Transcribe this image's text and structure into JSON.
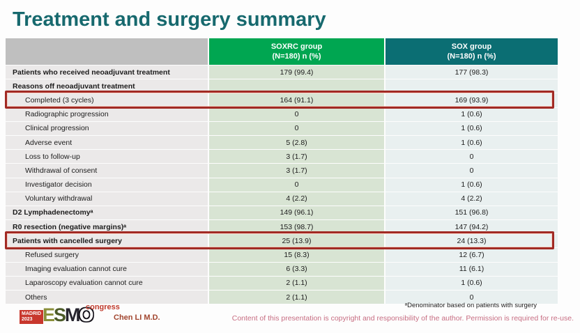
{
  "slide": {
    "title": "Treatment and surgery summary",
    "colors": {
      "title_teal": "#17696E",
      "header_green": "#00A651",
      "header_teal": "#0B6E73",
      "header_gray": "#BFBFBF",
      "highlight_red": "#A12A24",
      "label_cell_bg": "#EBE9E9",
      "soxrc_cell_bg": "#D8E4D3",
      "sox_cell_bg": "#E9F0F0"
    }
  },
  "table": {
    "header": {
      "blank": "",
      "soxrc": {
        "line1": "SOXRC group",
        "line2": "(N=180)  n (%)"
      },
      "sox": {
        "line1": "SOX group",
        "line2": "(N=180)  n (%)"
      }
    },
    "rows": [
      {
        "label": "Patients who received neoadjuvant treatment",
        "soxrc": "179 (99.4)",
        "sox": "177 (98.3)",
        "style": "bold",
        "highlight": false
      },
      {
        "label": "Reasons off neoadjuvant treatment",
        "soxrc": "",
        "sox": "",
        "style": "bold",
        "highlight": false
      },
      {
        "label": "Completed (3 cycles)",
        "soxrc": "164 (91.1)",
        "sox": "169 (93.9)",
        "style": "indent",
        "highlight": true
      },
      {
        "label": "Radiographic progression",
        "soxrc": "0",
        "sox": "1 (0.6)",
        "style": "indent",
        "highlight": false
      },
      {
        "label": "Clinical progression",
        "soxrc": "0",
        "sox": "1 (0.6)",
        "style": "indent",
        "highlight": false
      },
      {
        "label": "Adverse event",
        "soxrc": "5 (2.8)",
        "sox": "1 (0.6)",
        "style": "indent",
        "highlight": false
      },
      {
        "label": "Loss to follow-up",
        "soxrc": "3 (1.7)",
        "sox": "0",
        "style": "indent",
        "highlight": false
      },
      {
        "label": "Withdrawal of consent",
        "soxrc": "3 (1.7)",
        "sox": "0",
        "style": "indent",
        "highlight": false
      },
      {
        "label": "Investigator decision",
        "soxrc": "0",
        "sox": "1 (0.6)",
        "style": "indent",
        "highlight": false
      },
      {
        "label": "Voluntary withdrawal",
        "soxrc": "4 (2.2)",
        "sox": "4 (2.2)",
        "style": "indent",
        "highlight": false
      },
      {
        "label": "D2 Lymphadenectomyᵃ",
        "soxrc": "149 (96.1)",
        "sox": "151 (96.8)",
        "style": "bold",
        "highlight": false
      },
      {
        "label": "R0 resection (negative margins)ᵃ",
        "soxrc": "153 (98.7)",
        "sox": "147 (94.2)",
        "style": "bold",
        "highlight": false
      },
      {
        "label": "Patients with cancelled surgery",
        "soxrc": "25 (13.9)",
        "sox": "24 (13.3)",
        "style": "bold",
        "highlight": true
      },
      {
        "label": "Refused surgery",
        "soxrc": "15 (8.3)",
        "sox": "12 (6.7)",
        "style": "indent",
        "highlight": false
      },
      {
        "label": "Imaging evaluation cannot cure",
        "soxrc": "6 (3.3)",
        "sox": "11 (6.1)",
        "style": "indent",
        "highlight": false
      },
      {
        "label": "Laparoscopy evaluation cannot cure",
        "soxrc": "2 (1.1)",
        "sox": "1 (0.6)",
        "style": "indent",
        "highlight": false
      },
      {
        "label": "Others",
        "soxrc": "2 (1.1)",
        "sox": "0",
        "style": "indent",
        "highlight": false
      }
    ]
  },
  "footer": {
    "logo": {
      "madrid": "MADRID",
      "year": "2023",
      "letters": [
        "E",
        "S",
        "M",
        "O"
      ],
      "congress": "congress"
    },
    "author": "Chen LI M.D.",
    "footnote": "ᵃDenominator based on patients with surgery",
    "copyright": "Content of this presentation is copyright and responsibility of the author. Permission is required for re-use."
  }
}
